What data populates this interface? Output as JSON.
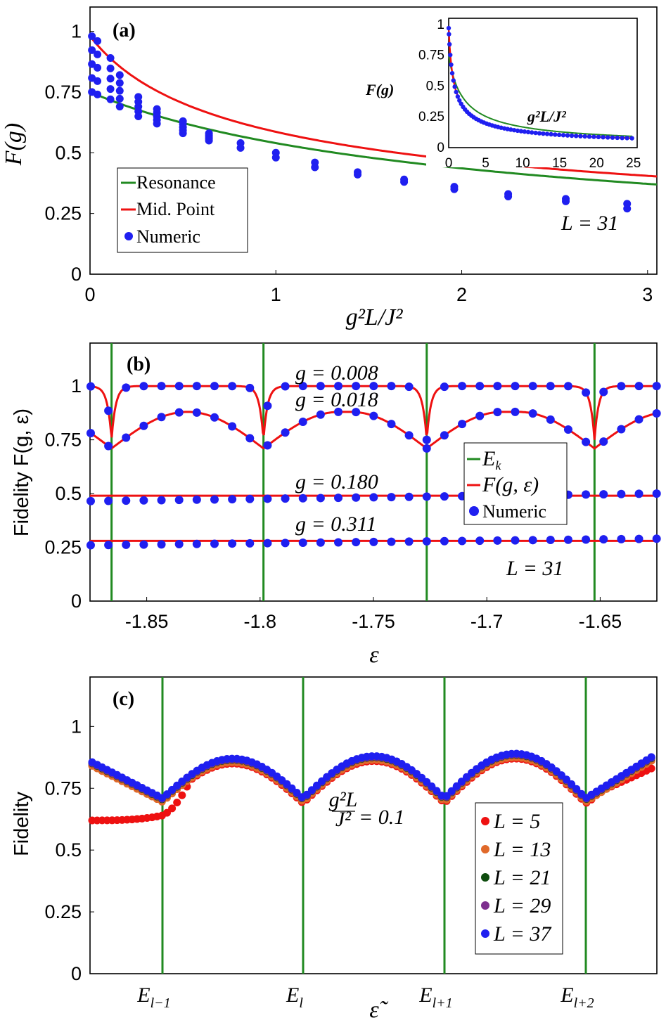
{
  "colors": {
    "resonance": "#218A21",
    "mid_point": "#EE1111",
    "numeric": "#1F1FF0",
    "L5": "#EE1111",
    "L13": "#E0692A",
    "L21": "#0F4D0F",
    "L29": "#7D2F8E",
    "L37": "#1F1FF0"
  },
  "chart_data": [
    {
      "id": "a",
      "type": "line",
      "panel_label": "(a)",
      "xlabel": "g²L/J²",
      "ylabel": "F(g)",
      "xlim": [
        0,
        3.05
      ],
      "ylim": [
        0,
        1.1
      ],
      "xticks": [
        "0",
        "1",
        "2",
        "3"
      ],
      "yticks": [
        "0",
        "0.25",
        "0.5",
        "0.75",
        "1"
      ],
      "annotation": "L = 31",
      "legend": [
        {
          "label": "Resonance",
          "kind": "line",
          "color_key": "resonance"
        },
        {
          "label": "Mid. Point",
          "kind": "line",
          "color_key": "mid_point"
        },
        {
          "label": "Numeric",
          "kind": "dot",
          "color_key": "numeric"
        }
      ],
      "series": [
        {
          "name": "Resonance",
          "formula": "1/(1+sqrt(x)) shape",
          "note": "analytic curve"
        },
        {
          "name": "Mid. Point",
          "formula": "analytic curve"
        }
      ],
      "numeric_x": [
        0.01,
        0.04,
        0.11,
        0.16,
        0.26,
        0.36,
        0.5,
        0.64,
        0.81,
        1.0,
        1.21,
        1.44,
        1.69,
        1.96,
        2.25,
        2.56,
        2.89
      ],
      "numeric_y_upper": [
        0.98,
        0.96,
        0.89,
        0.82,
        0.73,
        0.68,
        0.63,
        0.58,
        0.54,
        0.5,
        0.46,
        0.42,
        0.39,
        0.36,
        0.33,
        0.31,
        0.29
      ],
      "numeric_y_lower": [
        0.75,
        0.74,
        0.72,
        0.69,
        0.65,
        0.62,
        0.58,
        0.55,
        0.52,
        0.48,
        0.44,
        0.41,
        0.38,
        0.35,
        0.32,
        0.3,
        0.27
      ],
      "inset": {
        "xlabel": "g²L/J²",
        "ylabel": "F(g)",
        "xlim": [
          0,
          25.5
        ],
        "ylim": [
          0,
          1.05
        ],
        "xticks": [
          "0",
          "5",
          "10",
          "15",
          "20",
          "25"
        ],
        "yticks": [
          "0",
          "0.25",
          "0.5",
          "0.75",
          "1"
        ]
      }
    },
    {
      "id": "b",
      "type": "line",
      "panel_label": "(b)",
      "xlabel": "ε",
      "ylabel": "Fidelity F(g, ε)",
      "xlim": [
        -1.875,
        -1.625
      ],
      "ylim": [
        0,
        1.2
      ],
      "xticks": [
        "-1.85",
        "-1.8",
        "-1.75",
        "-1.7",
        "-1.65"
      ],
      "xtick_values": [
        -1.85,
        -1.8,
        -1.75,
        -1.7,
        -1.65
      ],
      "yticks": [
        "0",
        "0.25",
        "0.5",
        "0.75",
        "1"
      ],
      "resonances": [
        -1.8655,
        -1.7985,
        -1.7265,
        -1.6525
      ],
      "annotation": "L = 31",
      "series_labels": [
        "g = 0.008",
        "g = 0.018",
        "g = 0.180",
        "g = 0.311"
      ],
      "baseline_levels": [
        0.49,
        0.28
      ],
      "legend": [
        {
          "label": "E",
          "sub": "k",
          "kind": "line",
          "color_key": "resonance"
        },
        {
          "label": "F(g, ε)",
          "kind": "line",
          "color_key": "mid_point"
        },
        {
          "label": "Numeric",
          "kind": "dot",
          "color_key": "numeric"
        }
      ]
    },
    {
      "id": "c",
      "type": "scatter",
      "panel_label": "(c)",
      "xlabel": "ε̃",
      "ylabel": "Fidelity",
      "ylim": [
        0,
        1.2
      ],
      "yticks": [
        "0",
        "0.25",
        "0.5",
        "0.75",
        "1"
      ],
      "xticks": [
        {
          "base": "E",
          "sub": "l−1"
        },
        {
          "base": "E",
          "sub": "l"
        },
        {
          "base": "E",
          "sub": "l+1"
        },
        {
          "base": "E",
          "sub": "l+2"
        }
      ],
      "annotation_text": "= 0.1",
      "annotation_frac": {
        "num": "g²L",
        "den": "J²"
      },
      "legend": [
        {
          "label": "L = 5",
          "color_key": "L5"
        },
        {
          "label": "L = 13",
          "color_key": "L13"
        },
        {
          "label": "L = 21",
          "color_key": "L21"
        },
        {
          "label": "L = 29",
          "color_key": "L29"
        },
        {
          "label": "L = 37",
          "color_key": "L37"
        }
      ],
      "dip_value": 0.71,
      "peak_values": [
        0.87,
        0.88,
        0.89
      ],
      "left_edge_value": 0.86,
      "right_edge_value": 0.89,
      "L5_left_plateau": 0.62,
      "L5_right_edge": 0.84
    }
  ]
}
